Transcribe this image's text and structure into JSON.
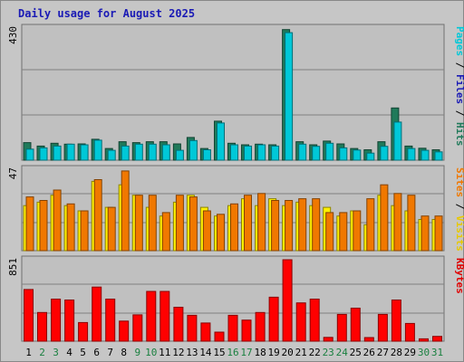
{
  "chart_data": {
    "type": "bar",
    "title": "Daily usage for August 2025",
    "categories": [
      "1",
      "2",
      "3",
      "4",
      "5",
      "6",
      "7",
      "8",
      "9",
      "10",
      "11",
      "12",
      "13",
      "14",
      "15",
      "16",
      "17",
      "18",
      "19",
      "20",
      "21",
      "22",
      "23",
      "24",
      "25",
      "26",
      "27",
      "28",
      "29",
      "30",
      "31"
    ],
    "weekend_categories": [
      "2",
      "3",
      "9",
      "10",
      "16",
      "17",
      "23",
      "24",
      "30",
      "31"
    ],
    "panels": [
      {
        "id": "top",
        "ymax_label": "430",
        "ylim": [
          0,
          430
        ],
        "right_label": [
          {
            "text": "Pages",
            "color": "#00c8d8"
          },
          {
            "text": " / ",
            "color": "#000000"
          },
          {
            "text": "Files",
            "color": "#1a1ab5"
          },
          {
            "text": " / ",
            "color": "#000000"
          },
          {
            "text": "Hits",
            "color": "#207a5a"
          }
        ],
        "series": [
          {
            "name": "Hits",
            "color": "#207a5a",
            "values": [
              57,
              46,
              55,
              52,
              53,
              68,
              38,
              60,
              57,
              60,
              60,
              53,
              74,
              38,
              127,
              55,
              50,
              52,
              50,
              425,
              60,
              50,
              62,
              53,
              38,
              34,
              60,
              170,
              46,
              39,
              34
            ]
          },
          {
            "name": "Files",
            "color": "#00c8d8",
            "values": [
              36,
              40,
              46,
              52,
              50,
              65,
              32,
              46,
              52,
              52,
              50,
              32,
              64,
              34,
              121,
              50,
              46,
              50,
              46,
              415,
              52,
              45,
              55,
              40,
              33,
              23,
              45,
              124,
              38,
              32,
              27
            ]
          }
        ]
      },
      {
        "id": "middle",
        "ymax_label": "47",
        "ylim": [
          0,
          47
        ],
        "right_label": [
          {
            "text": "Sites",
            "color": "#f07800"
          },
          {
            "text": " / ",
            "color": "#000000"
          },
          {
            "text": "Visits",
            "color": "#e8c800"
          }
        ],
        "series": [
          {
            "name": "Visits",
            "color": "#fff000",
            "values": [
              26,
              28,
              32,
              26,
              23,
              40,
              25,
              38,
              32,
              25,
              20,
              28,
              32,
              25,
              20,
              26,
              30,
              26,
              30,
              26,
              28,
              26,
              25,
              20,
              23,
              15,
              32,
              26,
              23,
              18,
              18
            ]
          },
          {
            "name": "Sites",
            "color": "#f07800",
            "values": [
              31,
              29,
              35,
              27,
              23,
              41,
              25,
              46,
              32,
              32,
              22,
              32,
              31,
              23,
              21,
              27,
              32,
              33,
              29,
              29,
              30,
              30,
              22,
              22,
              23,
              30,
              38,
              33,
              32,
              20,
              20
            ]
          }
        ]
      },
      {
        "id": "bottom",
        "ymax_label": "851",
        "ylim": [
          0,
          851
        ],
        "right_label": [
          {
            "text": "KBytes",
            "color": "#e00000"
          }
        ],
        "series": [
          {
            "name": "KBytes",
            "color": "#ff0000",
            "values": [
              540,
              300,
              440,
              430,
              195,
              565,
              440,
              210,
              275,
              520,
              520,
              355,
              270,
              190,
              95,
              270,
              220,
              300,
              460,
              851,
              400,
              440,
              40,
              280,
              345,
              38,
              280,
              430,
              185,
              25,
              50
            ]
          }
        ]
      }
    ],
    "colors": {
      "frame_bg": "#c6c6c6",
      "plot_bg": "#c0c0c0",
      "grid": "#808080",
      "weekday_label": "#000000",
      "weekend_label": "#1a8040"
    }
  }
}
